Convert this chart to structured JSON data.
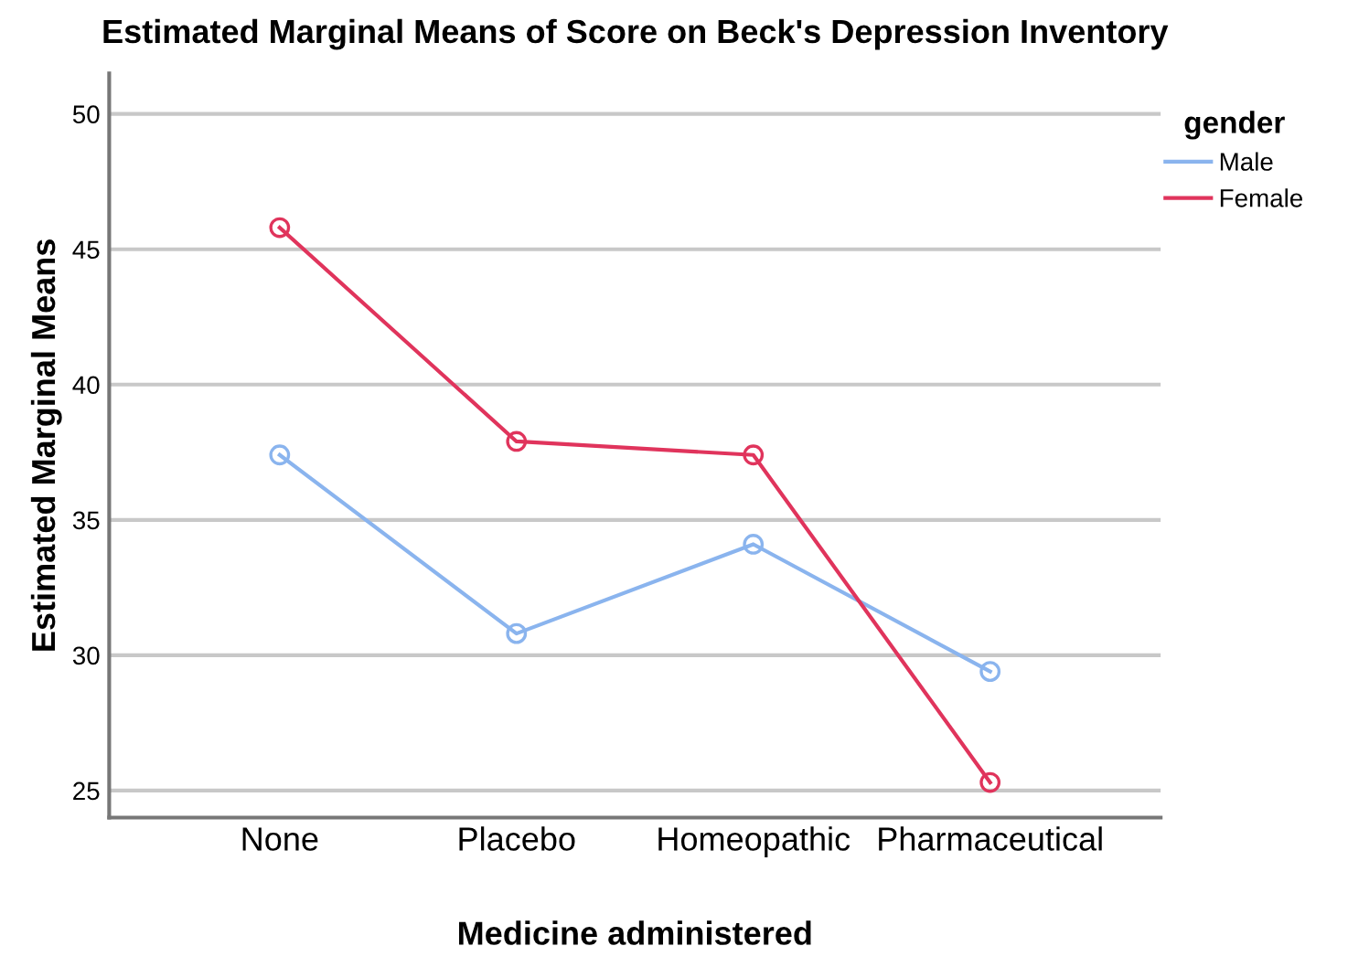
{
  "chart_data": {
    "type": "line",
    "title": "Estimated Marginal Means of Score on Beck's Depression Inventory",
    "xlabel": "Medicine administered",
    "ylabel": "Estimated Marginal Means",
    "legend_title": "gender",
    "categories": [
      "None",
      "Placebo",
      "Homeopathic",
      "Pharmaceutical"
    ],
    "series": [
      {
        "name": "Male",
        "color": "#8ab4ee",
        "values": [
          37.4,
          30.8,
          34.1,
          29.4
        ]
      },
      {
        "name": "Female",
        "color": "#e0345c",
        "values": [
          45.8,
          37.9,
          37.4,
          25.3
        ]
      }
    ],
    "ylim": [
      24,
      51.5
    ],
    "yticks": [
      25,
      30,
      35,
      40,
      45,
      50
    ],
    "grid": "y",
    "legend": "right",
    "marker": "circle",
    "line_style": "solid"
  }
}
